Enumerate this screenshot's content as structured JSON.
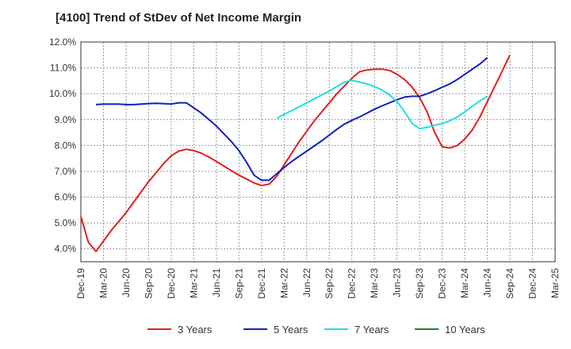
{
  "chart_data": {
    "type": "line",
    "title": "[4100]  Trend of StDev of Net Income Margin",
    "xlabel": "",
    "ylabel": "",
    "ylim": [
      3.5,
      12.0
    ],
    "y_ticks": [
      "4.0%",
      "5.0%",
      "6.0%",
      "7.0%",
      "8.0%",
      "9.0%",
      "10.0%",
      "11.0%",
      "12.0%"
    ],
    "y_tick_values": [
      4,
      5,
      6,
      7,
      8,
      9,
      10,
      11,
      12
    ],
    "x_ticks": [
      "Dec-19",
      "Mar-20",
      "Jun-20",
      "Sep-20",
      "Dec-20",
      "Mar-21",
      "Jun-21",
      "Sep-21",
      "Dec-21",
      "Mar-22",
      "Jun-22",
      "Sep-22",
      "Dec-22",
      "Mar-23",
      "Jun-23",
      "Sep-23",
      "Dec-23",
      "Mar-24",
      "Jun-24",
      "Sep-24",
      "Dec-24",
      "Mar-25"
    ],
    "grid": true,
    "legend_position": "bottom",
    "series": [
      {
        "name": "3 Years",
        "color": "#e02020",
        "x": [
          "Dec-19",
          "Jan-20",
          "Feb-20",
          "Mar-20",
          "Apr-20",
          "May-20",
          "Jun-20",
          "Jul-20",
          "Aug-20",
          "Sep-20",
          "Oct-20",
          "Nov-20",
          "Dec-20",
          "Jan-21",
          "Feb-21",
          "Mar-21",
          "Apr-21",
          "May-21",
          "Jun-21",
          "Jul-21",
          "Aug-21",
          "Sep-21",
          "Oct-21",
          "Nov-21",
          "Dec-21",
          "Jan-22",
          "Feb-22",
          "Mar-22",
          "Apr-22",
          "May-22",
          "Jun-22",
          "Jul-22",
          "Aug-22",
          "Sep-22",
          "Oct-22",
          "Nov-22",
          "Dec-22",
          "Jan-23",
          "Feb-23",
          "Mar-23",
          "Apr-23",
          "May-23",
          "Jun-23",
          "Jul-23",
          "Aug-23",
          "Sep-23",
          "Oct-23",
          "Nov-23",
          "Dec-23",
          "Jan-24",
          "Feb-24",
          "Mar-24",
          "Apr-24",
          "May-24",
          "Jun-24",
          "Jul-24",
          "Aug-24",
          "Sep-24",
          "Oct-24",
          "Nov-24",
          "Dec-24"
        ],
        "values": [
          5.25,
          4.25,
          3.9,
          4.3,
          4.7,
          5.05,
          5.4,
          5.8,
          6.2,
          6.6,
          6.95,
          7.3,
          7.6,
          7.78,
          7.85,
          7.8,
          7.7,
          7.55,
          7.38,
          7.2,
          7.02,
          6.85,
          6.7,
          6.55,
          6.45,
          6.5,
          6.8,
          7.25,
          7.7,
          8.15,
          8.55,
          8.95,
          9.3,
          9.65,
          10.0,
          10.3,
          10.6,
          10.85,
          10.92,
          10.95,
          10.95,
          10.9,
          10.75,
          10.55,
          10.25,
          9.85,
          9.3,
          8.5,
          7.95,
          7.9,
          8.0,
          8.25,
          8.6,
          9.1,
          9.7,
          10.3,
          10.9,
          11.5,
          11.6,
          11.6,
          11.6
        ],
        "display_n": 58
      },
      {
        "name": "5 Years",
        "color": "#1020c0",
        "x_start": "Feb-20",
        "values": [
          9.58,
          9.6,
          9.6,
          9.6,
          9.58,
          9.58,
          9.6,
          9.62,
          9.63,
          9.62,
          9.6,
          9.65,
          9.65,
          9.45,
          9.25,
          9.0,
          8.75,
          8.45,
          8.15,
          7.8,
          7.35,
          6.85,
          6.65,
          6.65,
          6.9,
          7.15,
          7.38,
          7.58,
          7.78,
          7.98,
          8.18,
          8.4,
          8.62,
          8.82,
          8.97,
          9.1,
          9.25,
          9.4,
          9.53,
          9.65,
          9.77,
          9.87,
          9.9,
          9.9,
          10.0,
          10.12,
          10.25,
          10.38,
          10.55,
          10.75,
          10.95,
          11.15,
          11.4
        ]
      },
      {
        "name": "7 Years",
        "color": "#20e0e0",
        "x_start": "Feb-22",
        "values": [
          9.05,
          9.2,
          9.35,
          9.5,
          9.65,
          9.8,
          9.95,
          10.1,
          10.28,
          10.45,
          10.52,
          10.45,
          10.38,
          10.28,
          10.15,
          9.95,
          9.7,
          9.3,
          8.85,
          8.65,
          8.7,
          8.78,
          8.85,
          8.95,
          9.1,
          9.3,
          9.52,
          9.72,
          9.9
        ]
      },
      {
        "name": "10 Years",
        "color": "#208020",
        "values": []
      }
    ]
  }
}
